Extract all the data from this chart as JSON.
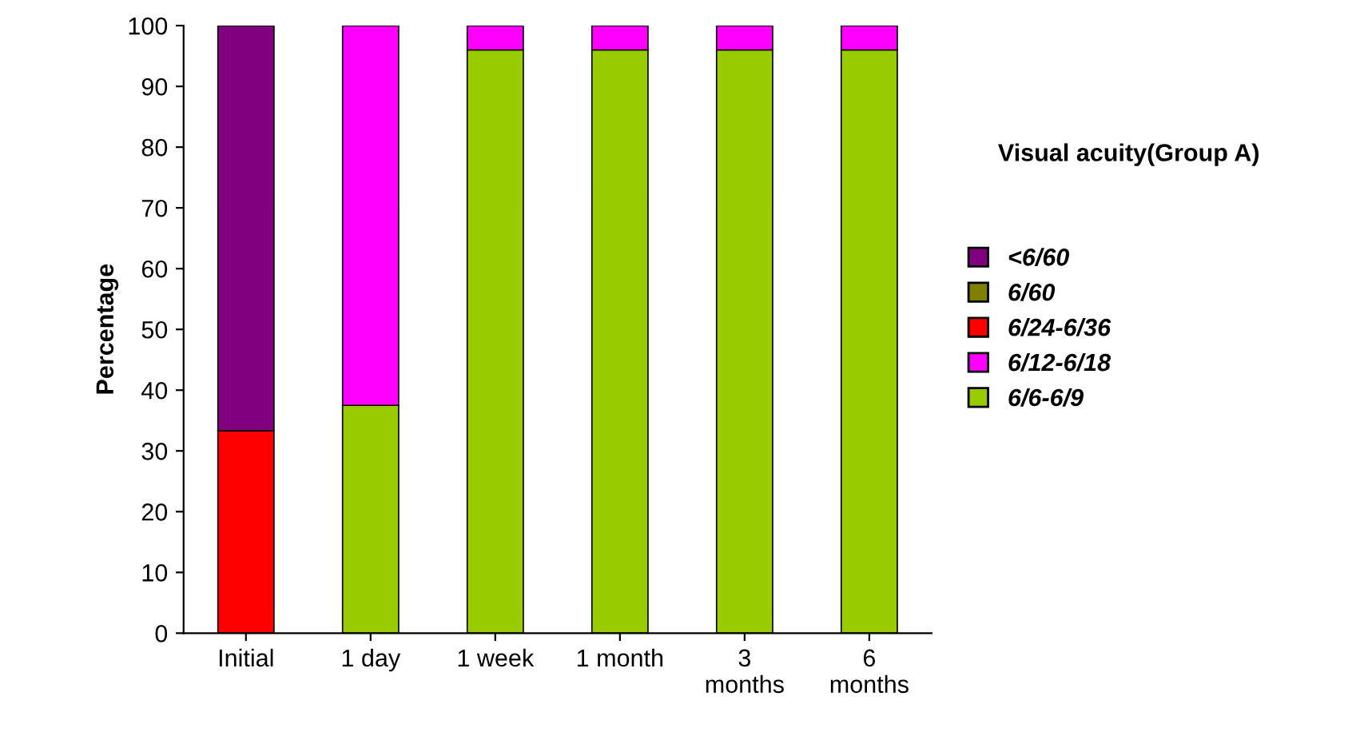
{
  "chart_data": {
    "type": "bar",
    "stacked": true,
    "ylabel": "Percentage",
    "legend_title": "Visual acuity(Group A)",
    "legend": "right",
    "grid": false,
    "categories": [
      "Initial",
      "1 day",
      "1 week",
      "1 month",
      "3\nmonths",
      "6\nmonths"
    ],
    "ylim": [
      0,
      100
    ],
    "yticks": [
      0,
      10,
      20,
      30,
      40,
      50,
      60,
      70,
      80,
      90,
      100
    ],
    "series": [
      {
        "name": "6/6-6/9",
        "color": "#99cc00",
        "values": [
          0,
          37.5,
          96,
          96,
          96,
          96
        ]
      },
      {
        "name": "6/12-6/18",
        "color": "#ff00ff",
        "values": [
          0,
          62.5,
          4,
          4,
          4,
          4
        ]
      },
      {
        "name": "6/24-6/36",
        "color": "#ff0000",
        "values": [
          33.3,
          0,
          0,
          0,
          0,
          0
        ]
      },
      {
        "name": "6/60",
        "color": "#808000",
        "values": [
          0,
          0,
          0,
          0,
          0,
          0
        ]
      },
      {
        "name": "<6/60",
        "color": "#800080",
        "values": [
          66.7,
          0,
          0,
          0,
          0,
          0
        ]
      }
    ]
  }
}
